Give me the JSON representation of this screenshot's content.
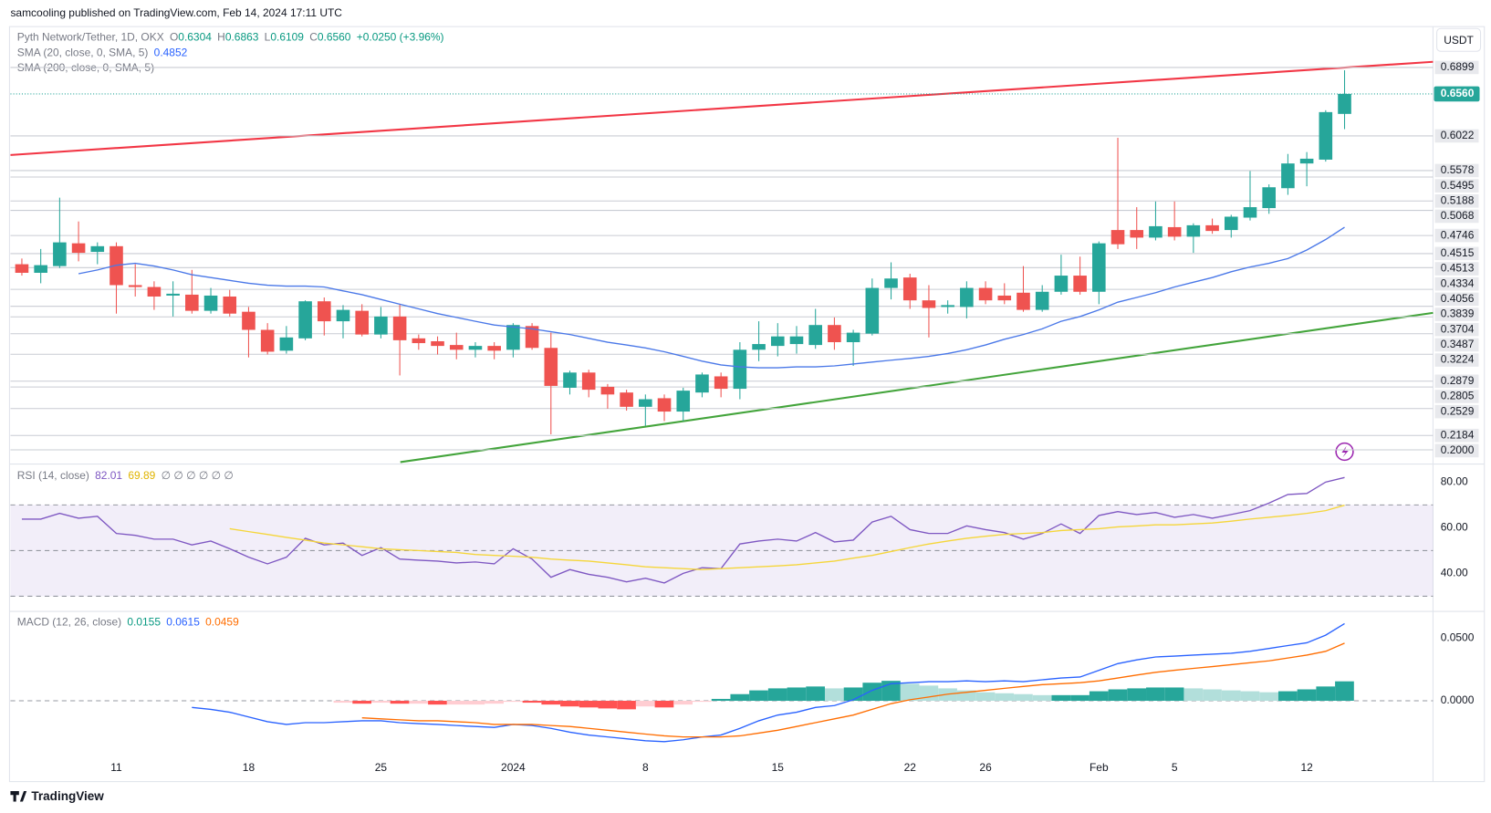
{
  "header": {
    "publisher": "samcooling published on TradingView.com, Feb 14, 2024 17:11 UTC",
    "symbol": "Pyth Network/Tether, 1D, OKX",
    "ohlc": [
      {
        "key": "O",
        "value": "0.6304"
      },
      {
        "key": "H",
        "value": "0.6863"
      },
      {
        "key": "L",
        "value": "0.6109"
      },
      {
        "key": "C",
        "value": "0.6560"
      }
    ],
    "change": "+0.0250 (+3.96%)",
    "sma20_value": "0.4852",
    "sma200": "SMA (200, close, 0, SMA, 5)",
    "currency": "USDT",
    "logo": "TradingView"
  },
  "chart_data": [
    {
      "type": "candlestick",
      "categories": [
        null,
        null,
        null,
        null,
        null,
        "11",
        null,
        null,
        null,
        null,
        null,
        null,
        "18",
        null,
        null,
        null,
        null,
        null,
        null,
        "25",
        null,
        null,
        null,
        null,
        null,
        null,
        "2024",
        null,
        null,
        null,
        null,
        null,
        null,
        "8",
        null,
        null,
        null,
        null,
        null,
        null,
        "15",
        null,
        null,
        null,
        null,
        null,
        null,
        "22",
        null,
        null,
        null,
        "26",
        null,
        null,
        null,
        null,
        null,
        "Feb",
        null,
        null,
        null,
        "5",
        null,
        null,
        null,
        null,
        null,
        null,
        "12",
        null,
        null
      ],
      "open": [
        0.4378,
        0.4268,
        0.4354,
        0.4646,
        0.4536,
        0.4609,
        0.411,
        0.4086,
        0.3976,
        0.3988,
        0.3781,
        0.3964,
        0.3769,
        0.3537,
        0.327,
        0.3428,
        0.3903,
        0.3647,
        0.3781,
        0.3477,
        0.3708,
        0.3428,
        0.3391,
        0.3343,
        0.3282,
        0.3331,
        0.3282,
        0.3586,
        0.3306,
        0.2795,
        0.299,
        0.2807,
        0.2734,
        0.2551,
        0.2661,
        0.249,
        0.2734,
        0.2941,
        0.2782,
        0.3282,
        0.3331,
        0.3355,
        0.3343,
        0.3599,
        0.3379,
        0.3489,
        0.4074,
        0.4208,
        0.3915,
        0.383,
        0.383,
        0.4074,
        0.3976,
        0.4013,
        0.3793,
        0.4025,
        0.4232,
        0.4025,
        0.4816,
        0.4816,
        0.4719,
        0.4853,
        0.4731,
        0.4877,
        0.4816,
        0.4975,
        0.5097,
        0.5352,
        0.5669,
        0.5718,
        0.6304
      ],
      "high": [
        0.4451,
        0.4573,
        0.5231,
        0.4926,
        0.4658,
        0.4658,
        0.4378,
        0.4159,
        0.4159,
        0.4305,
        0.4074,
        0.4049,
        0.383,
        0.3623,
        0.3586,
        0.3915,
        0.3952,
        0.3854,
        0.3866,
        0.383,
        0.3866,
        0.3477,
        0.3453,
        0.3501,
        0.3379,
        0.3379,
        0.3623,
        0.3623,
        0.3501,
        0.3014,
        0.3026,
        0.2843,
        0.277,
        0.2709,
        0.2709,
        0.2795,
        0.299,
        0.299,
        0.3379,
        0.3647,
        0.3623,
        0.3586,
        0.3806,
        0.3696,
        0.3538,
        0.4195,
        0.4402,
        0.4256,
        0.411,
        0.3915,
        0.4159,
        0.4159,
        0.4134,
        0.4354,
        0.411,
        0.45,
        0.4475,
        0.467,
        0.5998,
        0.5109,
        0.5182,
        0.5182,
        0.4902,
        0.4963,
        0.5011,
        0.5572,
        0.5401,
        0.5791,
        0.5815,
        0.6351,
        0.6863
      ],
      "low": [
        0.4232,
        0.4134,
        0.4329,
        0.4415,
        0.4378,
        0.3745,
        0.3964,
        0.3793,
        0.3708,
        0.3745,
        0.3745,
        0.3708,
        0.3184,
        0.3221,
        0.3233,
        0.3404,
        0.3465,
        0.3428,
        0.3453,
        0.3428,
        0.2953,
        0.3282,
        0.3221,
        0.316,
        0.3184,
        0.316,
        0.3184,
        0.3282,
        0.2198,
        0.2709,
        0.2673,
        0.2527,
        0.2502,
        0.2307,
        0.2368,
        0.2368,
        0.2673,
        0.2673,
        0.2648,
        0.3136,
        0.3197,
        0.3233,
        0.3294,
        0.3282,
        0.3075,
        0.3465,
        0.3927,
        0.3806,
        0.344,
        0.3745,
        0.3684,
        0.3866,
        0.3866,
        0.3769,
        0.3769,
        0.3988,
        0.3988,
        0.3866,
        0.4573,
        0.4573,
        0.4683,
        0.4683,
        0.4524,
        0.4768,
        0.4719,
        0.4938,
        0.5024,
        0.5267,
        0.5377,
        0.5693,
        0.6109
      ],
      "close": [
        0.4268,
        0.4366,
        0.4658,
        0.4524,
        0.4609,
        0.411,
        0.4086,
        0.3964,
        0.4,
        0.3781,
        0.3976,
        0.3745,
        0.3537,
        0.3257,
        0.344,
        0.3903,
        0.3647,
        0.3793,
        0.3477,
        0.3708,
        0.3404,
        0.3367,
        0.3331,
        0.3282,
        0.3331,
        0.327,
        0.3599,
        0.3306,
        0.2819,
        0.299,
        0.277,
        0.2709,
        0.2551,
        0.2648,
        0.249,
        0.2758,
        0.2965,
        0.2782,
        0.3282,
        0.3355,
        0.3453,
        0.3453,
        0.3599,
        0.3379,
        0.3501,
        0.4074,
        0.4195,
        0.3915,
        0.3818,
        0.3854,
        0.4074,
        0.3915,
        0.3915,
        0.3793,
        0.4025,
        0.4232,
        0.4025,
        0.4646,
        0.4634,
        0.4719,
        0.4865,
        0.4731,
        0.4877,
        0.4804,
        0.4987,
        0.5109,
        0.5364,
        0.5669,
        0.573,
        0.6327,
        0.656
      ],
      "up_color": "#26a69a",
      "down_color": "#ef5350",
      "series": [
        {
          "name": "SMA (20, close, 0, SMA, 5)",
          "color": "#4a78e8",
          "values": [
            null,
            null,
            null,
            0.4256,
            0.4305,
            0.4366,
            0.439,
            0.4354,
            0.4305,
            0.4244,
            0.4207,
            0.4171,
            0.4134,
            0.411,
            0.4098,
            0.4098,
            0.4086,
            0.4037,
            0.3988,
            0.3927,
            0.3866,
            0.3806,
            0.3745,
            0.3696,
            0.3647,
            0.3599,
            0.3574,
            0.355,
            0.3513,
            0.3477,
            0.3428,
            0.3379,
            0.3343,
            0.3306,
            0.3257,
            0.3197,
            0.3136,
            0.3087,
            0.3063,
            0.3051,
            0.3051,
            0.3063,
            0.3063,
            0.3075,
            0.3099,
            0.3124,
            0.3148,
            0.3172,
            0.3197,
            0.3233,
            0.3282,
            0.3343,
            0.3416,
            0.3477,
            0.355,
            0.3647,
            0.3708,
            0.3793,
            0.3891,
            0.3952,
            0.4013,
            0.4086,
            0.4147,
            0.4207,
            0.4281,
            0.4342,
            0.439,
            0.4451,
            0.4561,
            0.4695,
            0.4852
          ]
        }
      ],
      "ylim": [
        0.183,
        0.7398
      ],
      "yticks": [
        0.6899,
        0.6022,
        0.5578,
        0.5495,
        0.5188,
        0.5068,
        0.4746,
        0.4515,
        0.4513,
        0.4334,
        0.4056,
        0.3839,
        0.3704,
        0.3487,
        0.3224,
        0.2879,
        0.2805,
        0.2529,
        0.2184,
        {
          "value": 0.2,
          "label": "0.2000"
        }
      ],
      "last_price": {
        "value": 0.656,
        "label": "0.6560"
      }
    },
    {
      "type": "line",
      "title": "RSI (14, close)",
      "legend_values": [
        "82.01",
        "69.89"
      ],
      "legend_extra": "∅ ∅ ∅ ∅ ∅ ∅",
      "series": [
        {
          "color": "#7e57c2",
          "values": [
            63.8,
            63.8,
            66.3,
            64.2,
            65,
            57.5,
            56.7,
            55,
            55,
            52.5,
            54.2,
            50.8,
            47.1,
            44.2,
            47.1,
            55.4,
            52.5,
            53.3,
            47.9,
            51.3,
            46.3,
            45.8,
            45.4,
            44.6,
            45,
            44.2,
            50.8,
            46.3,
            38.3,
            41.7,
            39.6,
            38.3,
            36.3,
            37.9,
            35.8,
            40,
            42.5,
            42.1,
            52.9,
            54.2,
            55,
            54.2,
            57.9,
            53.8,
            54.6,
            62.5,
            65,
            59.2,
            57.5,
            57.5,
            60.8,
            59.2,
            57.9,
            55,
            57.5,
            61.7,
            57.5,
            65.4,
            67.1,
            65.8,
            66.7,
            64.6,
            65.8,
            64.2,
            65.8,
            67.5,
            70.8,
            74.6,
            75,
            80,
            82.01
          ]
        },
        {
          "color": "#f5d63a",
          "values": [
            null,
            null,
            null,
            null,
            null,
            null,
            null,
            null,
            null,
            null,
            null,
            59.6,
            58.3,
            57.1,
            55.8,
            54.6,
            53.3,
            52.5,
            51.7,
            50.8,
            50.4,
            50,
            49.6,
            49.2,
            48.3,
            47.9,
            47.5,
            47.1,
            46.3,
            45.8,
            45.4,
            44.6,
            43.8,
            42.9,
            42.5,
            42.1,
            41.7,
            42.1,
            42.5,
            42.9,
            43.3,
            43.8,
            44.6,
            45.4,
            46.7,
            47.9,
            49.6,
            51.3,
            52.9,
            54.2,
            55.4,
            56.3,
            57.1,
            57.5,
            57.9,
            58.8,
            59.2,
            59.6,
            60.4,
            60.8,
            61.3,
            61.3,
            61.7,
            62.1,
            62.9,
            63.8,
            64.6,
            65.4,
            66.3,
            67.5,
            69.89
          ]
        }
      ],
      "ylim": [
        24.6,
        87.1
      ],
      "yticks": [
        {
          "value": 80,
          "label": "80.00"
        },
        {
          "value": 60,
          "label": "60.00"
        },
        {
          "value": 40,
          "label": "40.00"
        }
      ],
      "levels": [
        70,
        50,
        30
      ]
    },
    {
      "type": "combo",
      "title": "MACD (12, 26, close)",
      "legend_values": [
        "0.0155",
        "0.0615",
        "0.0459"
      ],
      "histogram": {
        "up_color": "#26a69a",
        "up_fade_color": "#b2dfdb",
        "down_color": "#ff5252",
        "down_fade_color": "#ffcdd2",
        "values": [
          null,
          null,
          null,
          null,
          null,
          null,
          null,
          null,
          null,
          null,
          null,
          null,
          null,
          null,
          null,
          null,
          null,
          -0.0015,
          -0.0023,
          -0.0015,
          -0.0023,
          -0.0023,
          -0.003,
          -0.003,
          -0.003,
          -0.0023,
          -0.0008,
          -0.0015,
          -0.003,
          -0.0045,
          -0.0053,
          -0.0061,
          -0.0068,
          -0.0045,
          -0.0053,
          -0.003,
          -0.0008,
          0.0015,
          0.0053,
          0.0083,
          0.0099,
          0.0106,
          0.0114,
          0.0099,
          0.0106,
          0.0144,
          0.0159,
          0.0136,
          0.0121,
          0.0099,
          0.0083,
          0.0068,
          0.006,
          0.0053,
          0.0045,
          0.0045,
          0.0045,
          0.0076,
          0.0091,
          0.0099,
          0.0106,
          0.0106,
          0.0099,
          0.0091,
          0.0083,
          0.0076,
          0.0068,
          0.0076,
          0.0091,
          0.0114,
          0.0155
        ]
      },
      "series": [
        {
          "color": "#2962ff",
          "values": [
            null,
            null,
            null,
            null,
            null,
            null,
            null,
            null,
            null,
            -0.0053,
            -0.0068,
            -0.0091,
            -0.0129,
            -0.0167,
            -0.0189,
            -0.0174,
            -0.0174,
            -0.0167,
            -0.0159,
            -0.0159,
            -0.0174,
            -0.0182,
            -0.0189,
            -0.0197,
            -0.0205,
            -0.0212,
            -0.0189,
            -0.0197,
            -0.022,
            -0.025,
            -0.0273,
            -0.0288,
            -0.0303,
            -0.0318,
            -0.0326,
            -0.0311,
            -0.0288,
            -0.0273,
            -0.022,
            -0.0159,
            -0.0114,
            -0.0091,
            -0.0053,
            -0.0038,
            0.0008,
            0.0083,
            0.0136,
            0.0144,
            0.0152,
            0.0152,
            0.0159,
            0.0152,
            0.0159,
            0.0152,
            0.0167,
            0.0182,
            0.0189,
            0.0243,
            0.0296,
            0.0326,
            0.0349,
            0.0356,
            0.0364,
            0.0371,
            0.0379,
            0.0394,
            0.0417,
            0.044,
            0.0462,
            0.0523,
            0.0615
          ]
        },
        {
          "color": "#ff6d00",
          "values": [
            null,
            null,
            null,
            null,
            null,
            null,
            null,
            null,
            null,
            null,
            null,
            null,
            null,
            null,
            null,
            null,
            null,
            null,
            -0.0136,
            -0.0144,
            -0.0152,
            -0.0159,
            -0.0159,
            -0.0167,
            -0.0174,
            -0.0189,
            -0.0189,
            -0.0189,
            -0.0197,
            -0.0205,
            -0.022,
            -0.0235,
            -0.025,
            -0.0265,
            -0.028,
            -0.0288,
            -0.0288,
            -0.0288,
            -0.028,
            -0.0258,
            -0.0235,
            -0.0205,
            -0.0174,
            -0.0144,
            -0.0114,
            -0.0068,
            -0.0023,
            0.0008,
            0.003,
            0.0053,
            0.0068,
            0.0083,
            0.0099,
            0.0114,
            0.0129,
            0.0136,
            0.0144,
            0.0159,
            0.0182,
            0.0205,
            0.0227,
            0.0243,
            0.0258,
            0.0273,
            0.0288,
            0.0303,
            0.0318,
            0.0341,
            0.0364,
            0.0394,
            0.0459
          ]
        }
      ],
      "ylim": [
        -0.0629,
        0.0697
      ],
      "yticks": [
        {
          "value": 0.05,
          "label": "0.0500"
        },
        {
          "value": 0,
          "label": "0.0000"
        }
      ],
      "levels": [
        0
      ]
    }
  ]
}
